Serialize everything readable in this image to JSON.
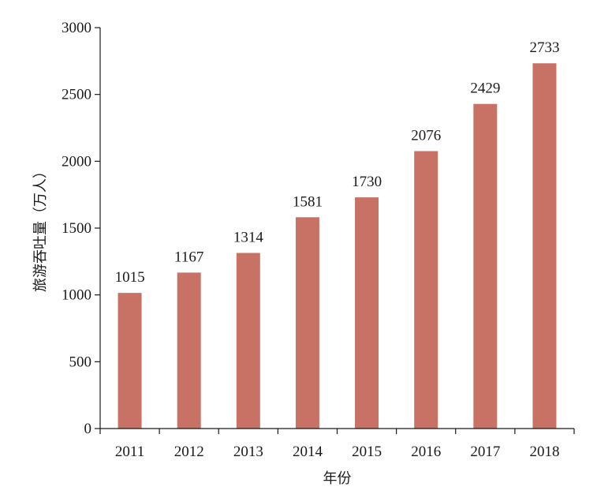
{
  "chart_data": {
    "type": "bar",
    "title": "",
    "xlabel": "年份",
    "ylabel": "旅游吞吐量（万人）",
    "categories": [
      "2011",
      "2012",
      "2013",
      "2014",
      "2015",
      "2016",
      "2017",
      "2018"
    ],
    "values": [
      1015,
      1167,
      1314,
      1581,
      1730,
      2076,
      2429,
      2733
    ],
    "data_labels": [
      "1015",
      "1167",
      "1314",
      "1581",
      "1730",
      "2076",
      "2429",
      "2733"
    ],
    "ylim": [
      0,
      3000
    ],
    "yticks": [
      0,
      500,
      1000,
      1500,
      2000,
      2500,
      3000
    ],
    "ytick_labels": [
      "0",
      "500",
      "1000",
      "1500",
      "2000",
      "2500",
      "3000"
    ],
    "bar_color": "#c87265",
    "grid": false,
    "legend": "none"
  }
}
